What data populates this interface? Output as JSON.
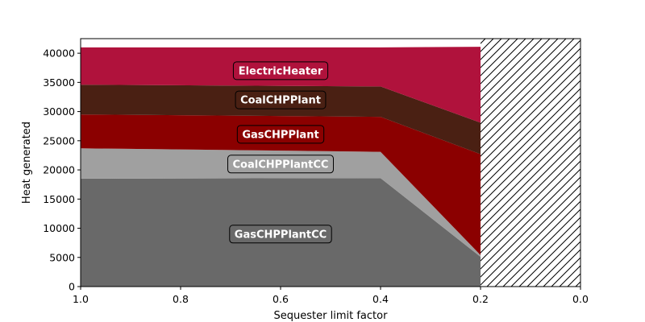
{
  "chart_data": {
    "type": "area",
    "title": "",
    "xlabel": "Sequester limit factor",
    "ylabel": "Heat generated",
    "x": [
      1.0,
      0.4,
      0.2
    ],
    "xlim": [
      1.0,
      0.0
    ],
    "ylim": [
      0,
      42500
    ],
    "xticks": [
      1.0,
      0.8,
      0.6,
      0.4,
      0.2,
      0.0
    ],
    "xtick_labels": [
      "1.0",
      "0.8",
      "0.6",
      "0.4",
      "0.2",
      "0.0"
    ],
    "yticks": [
      0,
      5000,
      10000,
      15000,
      20000,
      25000,
      30000,
      35000,
      40000
    ],
    "ytick_labels": [
      "0",
      "5000",
      "10000",
      "15000",
      "20000",
      "25000",
      "30000",
      "35000",
      "40000"
    ],
    "stacked": true,
    "infeasible_region": {
      "from": 0.2,
      "to": 0.0,
      "pattern": "hatched"
    },
    "series": [
      {
        "name": "GasCHPPlantCC",
        "values": [
          18500,
          18600,
          5100
        ],
        "color": "#696969",
        "label_at": [
          0.6,
          9000
        ]
      },
      {
        "name": "CoalCHPPlantCC",
        "values": [
          5200,
          4500,
          300
        ],
        "color": "#a0a0a0",
        "label_at": [
          0.6,
          21000
        ]
      },
      {
        "name": "GasCHPPlant",
        "values": [
          5800,
          6000,
          17300
        ],
        "color": "#8b0000",
        "label_at": [
          0.6,
          26100
        ]
      },
      {
        "name": "CoalCHPPlant",
        "values": [
          5100,
          5200,
          5400
        ],
        "color": "#4a2013",
        "label_at": [
          0.6,
          32000
        ]
      },
      {
        "name": "ElectricHeater",
        "values": [
          6400,
          6700,
          13000
        ],
        "color": "#b0123c",
        "label_at": [
          0.6,
          37000
        ]
      }
    ]
  }
}
